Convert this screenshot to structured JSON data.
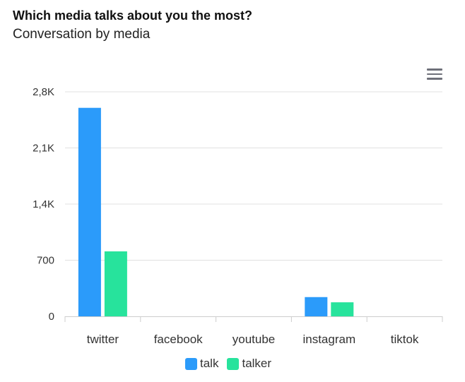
{
  "title": "Which media talks about you the most?",
  "subtitle": "Conversation by media",
  "menu_icon": "hamburger-menu-icon",
  "chart_data": {
    "type": "bar",
    "title": "Which media talks about you the most?",
    "subtitle": "Conversation by media",
    "categories": [
      "twitter",
      "facebook",
      "youtube",
      "instagram",
      "tiktok"
    ],
    "series": [
      {
        "name": "talk",
        "color": "#2b9bfa",
        "values": [
          2600,
          0,
          0,
          240,
          0
        ]
      },
      {
        "name": "talker",
        "color": "#27e39c",
        "values": [
          810,
          0,
          0,
          175,
          0
        ]
      }
    ],
    "yticks": [
      0,
      700,
      1400,
      2100,
      2800
    ],
    "ytick_labels": [
      "0",
      "700",
      "1,4K",
      "2,1K",
      "2,8K"
    ],
    "ylim": [
      0,
      2800
    ],
    "xlabel": "",
    "ylabel": "",
    "grid": true,
    "legend_position": "bottom"
  }
}
